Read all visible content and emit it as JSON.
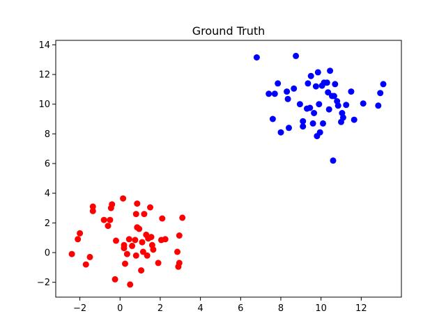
{
  "chart_data": {
    "type": "scatter",
    "title": "Ground Truth",
    "xlabel": "",
    "ylabel": "",
    "xlim": [
      -3.2,
      14.0
    ],
    "ylim": [
      -3.0,
      14.3
    ],
    "xticks": [
      -2,
      0,
      2,
      4,
      6,
      8,
      10,
      12
    ],
    "yticks": [
      -2,
      0,
      2,
      4,
      6,
      8,
      10,
      12,
      14
    ],
    "grid": false,
    "legend": "none",
    "series": [
      {
        "color": "#ff0000",
        "points": [
          [
            -2.4,
            -0.1
          ],
          [
            -2.1,
            0.9
          ],
          [
            -2.0,
            1.3
          ],
          [
            -1.7,
            -0.8
          ],
          [
            -1.5,
            -0.3
          ],
          [
            -1.35,
            3.1
          ],
          [
            -1.35,
            2.8
          ],
          [
            -0.8,
            2.2
          ],
          [
            -0.6,
            1.8
          ],
          [
            -0.5,
            2.2
          ],
          [
            -0.45,
            3.0
          ],
          [
            -0.4,
            3.25
          ],
          [
            -0.2,
            0.8
          ],
          [
            -0.25,
            -1.8
          ],
          [
            0.15,
            3.65
          ],
          [
            0.2,
            0.3
          ],
          [
            0.2,
            0.5
          ],
          [
            0.25,
            -0.75
          ],
          [
            0.35,
            -0.1
          ],
          [
            0.45,
            0.9
          ],
          [
            0.5,
            -2.15
          ],
          [
            0.6,
            0.45
          ],
          [
            0.75,
            0.85
          ],
          [
            0.8,
            2.6
          ],
          [
            0.8,
            -0.2
          ],
          [
            0.85,
            1.7
          ],
          [
            0.85,
            3.3
          ],
          [
            0.95,
            1.6
          ],
          [
            1.05,
            -1.2
          ],
          [
            1.1,
            0.7
          ],
          [
            1.15,
            0.05
          ],
          [
            1.2,
            2.6
          ],
          [
            1.3,
            1.2
          ],
          [
            1.35,
            -0.2
          ],
          [
            1.4,
            0.95
          ],
          [
            1.5,
            3.05
          ],
          [
            1.55,
            1.05
          ],
          [
            1.6,
            0.5
          ],
          [
            1.65,
            0.2
          ],
          [
            1.9,
            -0.7
          ],
          [
            2.05,
            0.85
          ],
          [
            2.1,
            2.3
          ],
          [
            2.25,
            0.9
          ],
          [
            2.85,
            0.05
          ],
          [
            2.9,
            -0.95
          ],
          [
            2.95,
            -0.7
          ],
          [
            2.95,
            1.15
          ],
          [
            3.1,
            2.35
          ]
        ]
      },
      {
        "color": "#0000ff",
        "points": [
          [
            6.8,
            13.15
          ],
          [
            7.4,
            10.7
          ],
          [
            7.6,
            9.0
          ],
          [
            7.7,
            10.7
          ],
          [
            7.85,
            11.4
          ],
          [
            8.0,
            8.1
          ],
          [
            8.3,
            10.85
          ],
          [
            8.35,
            10.35
          ],
          [
            8.4,
            8.4
          ],
          [
            8.65,
            11.05
          ],
          [
            8.75,
            13.25
          ],
          [
            8.95,
            10.0
          ],
          [
            9.1,
            8.5
          ],
          [
            9.1,
            8.85
          ],
          [
            9.3,
            9.7
          ],
          [
            9.35,
            11.4
          ],
          [
            9.45,
            9.75
          ],
          [
            9.5,
            11.9
          ],
          [
            9.6,
            8.7
          ],
          [
            9.65,
            9.4
          ],
          [
            9.75,
            11.2
          ],
          [
            9.8,
            7.85
          ],
          [
            9.85,
            12.15
          ],
          [
            9.9,
            10.0
          ],
          [
            9.95,
            8.1
          ],
          [
            10.05,
            11.25
          ],
          [
            10.1,
            8.7
          ],
          [
            10.15,
            11.45
          ],
          [
            10.3,
            11.45
          ],
          [
            10.35,
            10.8
          ],
          [
            10.4,
            9.65
          ],
          [
            10.45,
            12.25
          ],
          [
            10.55,
            10.55
          ],
          [
            10.6,
            6.2
          ],
          [
            10.65,
            10.55
          ],
          [
            10.7,
            11.35
          ],
          [
            10.8,
            10.2
          ],
          [
            10.85,
            9.9
          ],
          [
            11.0,
            8.8
          ],
          [
            11.05,
            9.4
          ],
          [
            11.1,
            9.1
          ],
          [
            11.25,
            9.95
          ],
          [
            11.5,
            10.85
          ],
          [
            11.65,
            8.95
          ],
          [
            12.1,
            10.05
          ],
          [
            12.85,
            9.9
          ],
          [
            12.95,
            10.75
          ],
          [
            13.1,
            11.35
          ]
        ]
      }
    ]
  }
}
